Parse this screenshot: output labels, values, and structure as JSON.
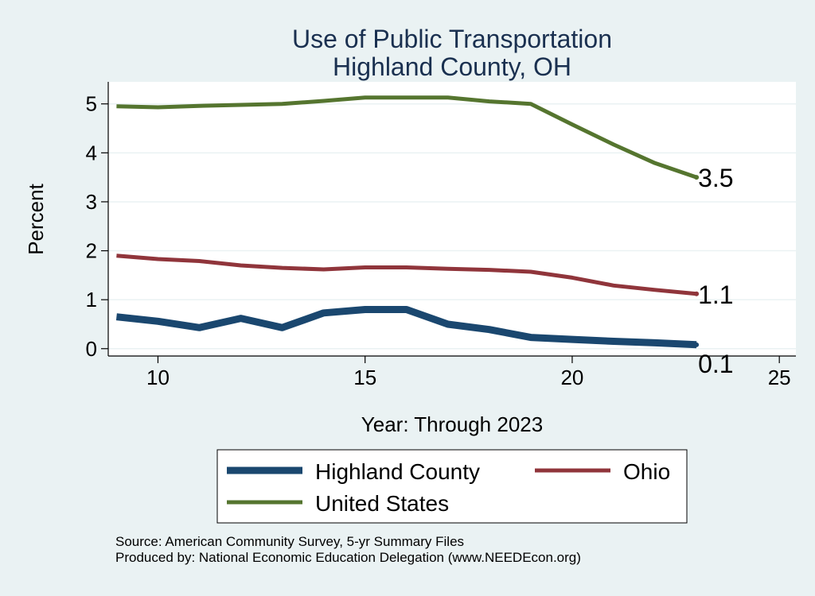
{
  "chart_data": {
    "type": "line",
    "title": [
      "Use of Public Transportation",
      "Highland County, OH"
    ],
    "xlabel": "Year: Through 2023",
    "ylabel": "Percent",
    "xlim": [
      8.8,
      25.4
    ],
    "ylim": [
      -0.15,
      5.45
    ],
    "xticks": [
      10,
      15,
      20,
      25
    ],
    "yticks": [
      0,
      1,
      2,
      3,
      4,
      5
    ],
    "grid": true,
    "legend": "bottom",
    "series": [
      {
        "name": "Highland County",
        "color": "#1a476f",
        "x": [
          9,
          10,
          11,
          12,
          13,
          14,
          15,
          16,
          17,
          18,
          19,
          20,
          21,
          22,
          23
        ],
        "y": [
          0.65,
          0.56,
          0.43,
          0.62,
          0.43,
          0.73,
          0.8,
          0.8,
          0.5,
          0.39,
          0.23,
          0.19,
          0.15,
          0.12,
          0.08
        ],
        "end_label": "0.1"
      },
      {
        "name": "Ohio",
        "color": "#90353b",
        "x": [
          9,
          10,
          11,
          12,
          13,
          14,
          15,
          16,
          17,
          18,
          19,
          20,
          21,
          22,
          23
        ],
        "y": [
          1.9,
          1.83,
          1.79,
          1.7,
          1.65,
          1.62,
          1.66,
          1.66,
          1.63,
          1.61,
          1.57,
          1.45,
          1.29,
          1.2,
          1.12
        ],
        "end_label": "1.1"
      },
      {
        "name": "United States",
        "color": "#55752f",
        "x": [
          9,
          10,
          11,
          12,
          13,
          14,
          15,
          16,
          17,
          18,
          19,
          20,
          21,
          22,
          23
        ],
        "y": [
          4.95,
          4.93,
          4.96,
          4.98,
          5.0,
          5.06,
          5.13,
          5.13,
          5.13,
          5.05,
          5.0,
          4.58,
          4.17,
          3.79,
          3.5
        ],
        "end_label": "3.5"
      }
    ],
    "notes": [
      "Source: American Community Survey, 5-yr Summary Files",
      "Produced by: National Economic Education Delegation (www.NEEDEcon.org)"
    ]
  }
}
